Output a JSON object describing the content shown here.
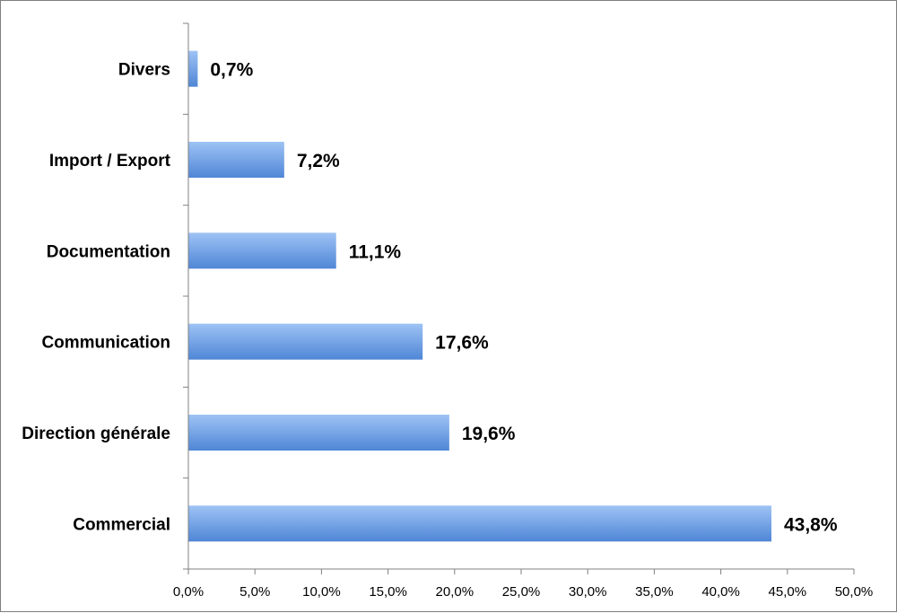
{
  "chart_data": {
    "type": "bar",
    "orientation": "horizontal",
    "title": "",
    "xlabel": "",
    "ylabel": "",
    "categories": [
      "Divers",
      "Import / Export",
      "Documentation",
      "Communication",
      "Direction générale",
      "Commercial"
    ],
    "values": [
      0.7,
      7.2,
      11.1,
      17.6,
      19.6,
      43.8
    ],
    "value_labels": [
      "0,7%",
      "7,2%",
      "11,1%",
      "17,6%",
      "19,6%",
      "43,8%"
    ],
    "xlim": [
      0,
      50
    ],
    "x_ticks": [
      0,
      5,
      10,
      15,
      20,
      25,
      30,
      35,
      40,
      45,
      50
    ],
    "x_tick_labels": [
      "0,0%",
      "5,0%",
      "10,0%",
      "15,0%",
      "20,0%",
      "25,0%",
      "30,0%",
      "35,0%",
      "40,0%",
      "45,0%",
      "50,0%"
    ],
    "grid": false,
    "legend": "none",
    "bar_color_light": "#9ec3f5",
    "bar_color_dark": "#4f86d6"
  }
}
